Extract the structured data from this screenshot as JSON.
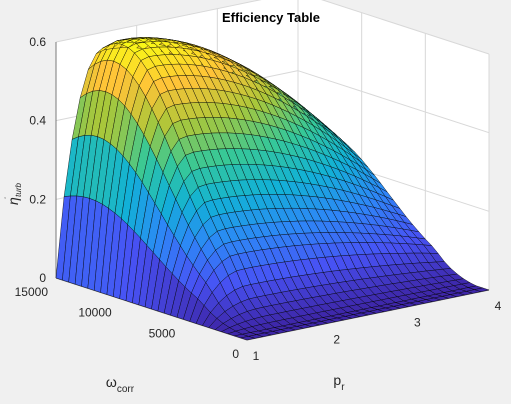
{
  "chart_data": {
    "type": "surface",
    "title": "Efficiency Table",
    "xlabel": {
      "main": "p",
      "sub": "r"
    },
    "ylabel": {
      "main": "ω",
      "sub": "corr"
    },
    "zlabel": {
      "main": "η",
      "sub": "turb",
      "accent": "˙"
    },
    "xlim": [
      1,
      4
    ],
    "ylim": [
      0,
      15000
    ],
    "zlim": [
      0,
      0.6
    ],
    "xticks": [
      "1",
      "2",
      "3",
      "4"
    ],
    "yticks": [
      "0",
      "5000",
      "10000",
      "15000"
    ],
    "zticks": [
      "0",
      "0.2",
      "0.4",
      "0.6"
    ],
    "xtick_values": [
      1,
      2,
      3,
      4
    ],
    "ytick_values": [
      0,
      5000,
      10000,
      15000
    ],
    "ztick_values": [
      0,
      0.2,
      0.4,
      0.6
    ],
    "colormap": "parula",
    "peak": {
      "p_r": 1.6,
      "omega_corr": 13000,
      "eta": 0.6
    },
    "zero_region": {
      "omega_corr_below": 1000
    },
    "grid": true
  },
  "colors": {
    "figure_bg": "#f0f0f0",
    "axes_bg": "#ffffff",
    "grid": "#d8d8d8",
    "mesh_edge": "#000000"
  }
}
